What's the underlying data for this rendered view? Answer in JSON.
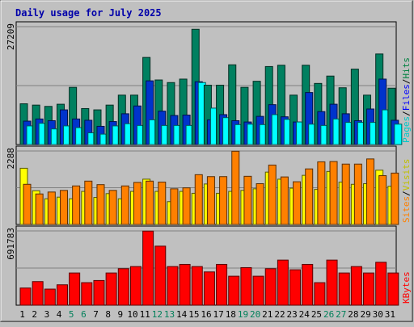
{
  "chart_data": [
    {
      "type": "bar",
      "title": "Daily usage for July 2025",
      "ymax_label": "27209",
      "ylim": [
        0,
        27209
      ],
      "legend": [
        {
          "label": "Pages",
          "color": "#00c8c8"
        },
        {
          "label": "/",
          "color": "#000000"
        },
        {
          "label": "Files",
          "color": "#0000ff"
        },
        {
          "label": "/",
          "color": "#000000"
        },
        {
          "label": "Hits",
          "color": "#008040"
        }
      ],
      "categories": [
        "1",
        "2",
        "3",
        "4",
        "5",
        "6",
        "7",
        "8",
        "9",
        "10",
        "11",
        "12",
        "13",
        "14",
        "15",
        "16",
        "17",
        "18",
        "19",
        "20",
        "21",
        "22",
        "23",
        "24",
        "25",
        "26",
        "27",
        "28",
        "29",
        "30",
        "31"
      ],
      "weekend_days": [
        "5",
        "6",
        "12",
        "13",
        "19",
        "20",
        "26",
        "27"
      ],
      "series": [
        {
          "name": "Hits",
          "color": "#008060",
          "values": [
            9400,
            9100,
            8800,
            9300,
            13200,
            8300,
            8000,
            9100,
            11400,
            11400,
            20100,
            14900,
            14300,
            15100,
            26600,
            13700,
            13700,
            18400,
            13200,
            14600,
            18000,
            18300,
            11400,
            18300,
            14100,
            15800,
            13100,
            17400,
            11400,
            20900,
            13000
          ]
        },
        {
          "name": "Files",
          "color": "#0033cc",
          "values": [
            5400,
            5900,
            5500,
            8000,
            5900,
            5600,
            4200,
            5300,
            7100,
            8900,
            14700,
            7700,
            6700,
            6800,
            14500,
            5700,
            6900,
            5500,
            5200,
            6500,
            9200,
            6400,
            5200,
            12000,
            7600,
            9300,
            7100,
            5500,
            8200,
            15100,
            5600
          ]
        },
        {
          "name": "Pages",
          "color": "#00ffff",
          "values": [
            4300,
            4900,
            3600,
            4300,
            3900,
            2700,
            2400,
            4300,
            4800,
            4400,
            5700,
            4400,
            4400,
            4400,
            14300,
            8400,
            6200,
            4600,
            4700,
            4600,
            6900,
            5800,
            5200,
            4700,
            4400,
            5900,
            5100,
            5100,
            5100,
            8000,
            4700
          ]
        }
      ],
      "axis_label_colors": {
        "Pages": "#00c8c8",
        "Files": "#0000ff",
        "Hits": "#008040"
      }
    },
    {
      "type": "bar",
      "ymax_label": "2288",
      "ylim": [
        0,
        2288
      ],
      "legend": [
        {
          "label": "Sites",
          "color": "#ff8000"
        },
        {
          "label": "/",
          "color": "#000000"
        },
        {
          "label": "Visits",
          "color": "#c0c000"
        }
      ],
      "categories": [
        "1",
        "2",
        "3",
        "4",
        "5",
        "6",
        "7",
        "8",
        "9",
        "10",
        "11",
        "12",
        "13",
        "14",
        "15",
        "16",
        "17",
        "18",
        "19",
        "20",
        "21",
        "22",
        "23",
        "24",
        "25",
        "26",
        "27",
        "28",
        "29",
        "30",
        "31"
      ],
      "series": [
        {
          "name": "Visits",
          "color": "#ffff00",
          "values": [
            1750,
            1050,
            800,
            850,
            800,
            1030,
            840,
            960,
            800,
            1030,
            1410,
            1030,
            710,
            1030,
            970,
            1260,
            970,
            1030,
            1060,
            1110,
            1630,
            1410,
            1130,
            1530,
            1090,
            1650,
            1320,
            1250,
            1270,
            1690,
            1190
          ]
        },
        {
          "name": "Sites",
          "color": "#ff8000",
          "values": [
            1250,
            950,
            1010,
            1060,
            1200,
            1350,
            1240,
            1060,
            1200,
            1310,
            1350,
            1320,
            1110,
            1140,
            1550,
            1490,
            1490,
            2280,
            1500,
            1270,
            1850,
            1480,
            1330,
            1730,
            1950,
            1960,
            1880,
            1880,
            2040,
            1520,
            1600
          ]
        }
      ]
    },
    {
      "type": "bar",
      "ymax_label": "691783",
      "ylim": [
        0,
        691783
      ],
      "legend": [
        {
          "label": "KBytes",
          "color": "#ff0000"
        }
      ],
      "categories": [
        "1",
        "2",
        "3",
        "4",
        "5",
        "6",
        "7",
        "8",
        "9",
        "10",
        "11",
        "12",
        "13",
        "14",
        "15",
        "16",
        "17",
        "18",
        "19",
        "20",
        "21",
        "22",
        "23",
        "24",
        "25",
        "26",
        "27",
        "28",
        "29",
        "30",
        "31"
      ],
      "series": [
        {
          "name": "KBytes",
          "color": "#ff0000",
          "values": [
            160000,
            220000,
            150000,
            190000,
            300000,
            210000,
            230000,
            300000,
            340000,
            360000,
            690000,
            550000,
            360000,
            380000,
            360000,
            310000,
            380000,
            270000,
            350000,
            270000,
            340000,
            420000,
            330000,
            380000,
            210000,
            420000,
            300000,
            360000,
            300000,
            400000,
            300000
          ]
        }
      ]
    }
  ]
}
